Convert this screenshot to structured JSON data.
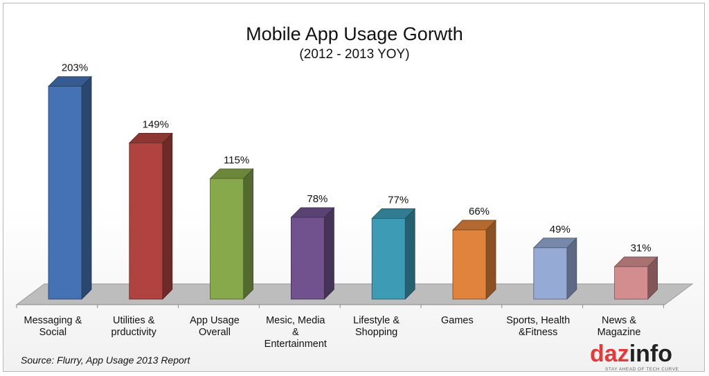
{
  "chart_data": {
    "type": "bar",
    "title": "Mobile App Usage Gorwth",
    "subtitle": "(2012 - 2013 YOY)",
    "categories": [
      [
        "Messaging &",
        "Social"
      ],
      [
        "Utilities &",
        "prductivity"
      ],
      [
        "App Usage",
        "Overall"
      ],
      [
        "Mesic, Media",
        "&",
        "Entertainment"
      ],
      [
        "Lifestyle &",
        "Shopping"
      ],
      [
        "Games"
      ],
      [
        "Sports, Health",
        "&Fitness"
      ],
      [
        "News &",
        "Magazine"
      ]
    ],
    "values": [
      203,
      149,
      115,
      78,
      77,
      66,
      49,
      31
    ],
    "value_labels": [
      "203%",
      "149%",
      "115%",
      "78%",
      "77%",
      "66%",
      "49%",
      "31%"
    ],
    "colors": [
      "#4472b5",
      "#b0433f",
      "#87a94b",
      "#71528e",
      "#3d9bb5",
      "#e0833c",
      "#96aad6",
      "#d48d8f"
    ],
    "ylim": [
      0,
      210
    ],
    "grid": false,
    "legend": "none",
    "source": "Source: Flurry, App Usage 2013 Report"
  },
  "logo": {
    "text_main": "daz",
    "text_info": "info",
    "tagline": "STAY AHEAD OF TECH CURVE"
  }
}
